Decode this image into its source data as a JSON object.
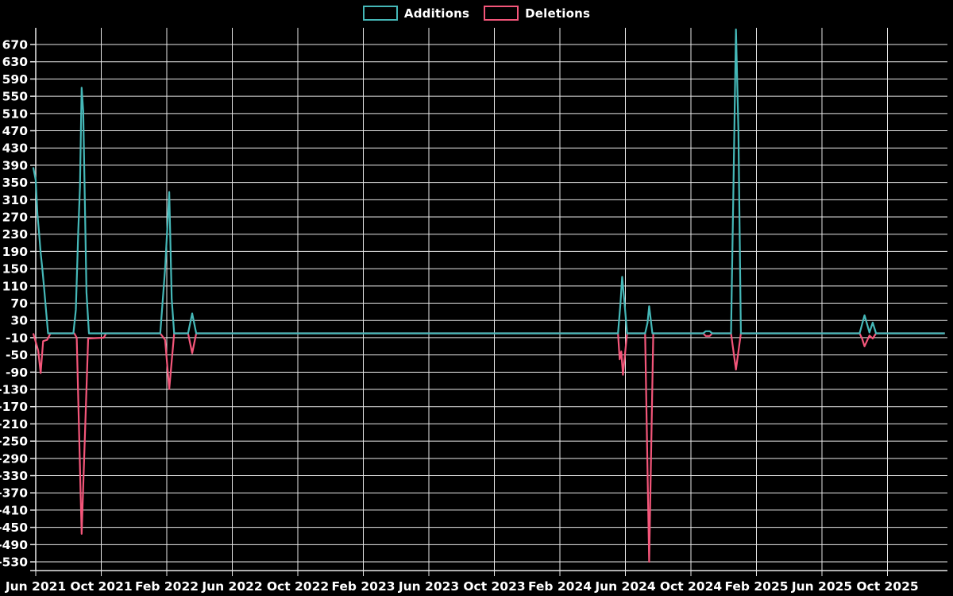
{
  "legend": {
    "items": [
      {
        "id": "additions",
        "label": "Additions",
        "color": "#45b8b8"
      },
      {
        "id": "deletions",
        "label": "Deletions",
        "color": "#f4567a"
      }
    ]
  },
  "chart_data": {
    "type": "line",
    "title": "",
    "xlabel": "",
    "ylabel": "",
    "background_color": "#000000",
    "grid_color": "#e8e8e8",
    "text_color": "#ffffff",
    "grid": true,
    "legend_position": "top-center",
    "x_unit": "months since Jun 2021",
    "x_tick_labels": [
      "Jun 2021",
      "Oct 2021",
      "Feb 2022",
      "Jun 2022",
      "Oct 2022",
      "Feb 2023",
      "Jun 2023",
      "Oct 2023",
      "Feb 2024",
      "Jun 2024",
      "Oct 2024",
      "Feb 2025",
      "Jun 2025",
      "Oct 2025"
    ],
    "x_tick_months": [
      0,
      4,
      8,
      12,
      16,
      20,
      24,
      28,
      32,
      36,
      40,
      44,
      48,
      52
    ],
    "y_tick_min": -530,
    "y_tick_max": 670,
    "y_tick_step": 40,
    "ylim": [
      -548,
      709
    ],
    "xlim_months": [
      -0.2,
      55.5
    ],
    "series": [
      {
        "name": "Additions",
        "color": "#45b8b8",
        "points": [
          [
            -0.15,
            385
          ],
          [
            0.0,
            355
          ],
          [
            0.1,
            277
          ],
          [
            0.2,
            235
          ],
          [
            0.3,
            187
          ],
          [
            0.4,
            150
          ],
          [
            0.5,
            110
          ],
          [
            0.6,
            66
          ],
          [
            0.75,
            0
          ],
          [
            2.3,
            0
          ],
          [
            2.45,
            55
          ],
          [
            2.6,
            240
          ],
          [
            2.7,
            340
          ],
          [
            2.8,
            570
          ],
          [
            2.9,
            515
          ],
          [
            3.0,
            300
          ],
          [
            3.1,
            95
          ],
          [
            3.25,
            0
          ],
          [
            7.6,
            0
          ],
          [
            7.9,
            150
          ],
          [
            8.15,
            328
          ],
          [
            8.3,
            80
          ],
          [
            8.45,
            0
          ],
          [
            9.3,
            0
          ],
          [
            9.55,
            46
          ],
          [
            9.8,
            0
          ],
          [
            35.55,
            0
          ],
          [
            35.7,
            70
          ],
          [
            35.8,
            131
          ],
          [
            35.95,
            68
          ],
          [
            36.1,
            0
          ],
          [
            37.2,
            0
          ],
          [
            37.35,
            24
          ],
          [
            37.45,
            63
          ],
          [
            37.65,
            0
          ],
          [
            40.75,
            0
          ],
          [
            40.9,
            5
          ],
          [
            41.15,
            5
          ],
          [
            41.3,
            0
          ],
          [
            42.45,
            0
          ],
          [
            42.6,
            345
          ],
          [
            42.75,
            705
          ],
          [
            42.9,
            470
          ],
          [
            43.05,
            0
          ],
          [
            50.3,
            0
          ],
          [
            50.6,
            42
          ],
          [
            50.9,
            2
          ],
          [
            51.1,
            25
          ],
          [
            51.3,
            0
          ],
          [
            55.5,
            0
          ]
        ]
      },
      {
        "name": "Deletions",
        "color": "#f4567a",
        "points": [
          [
            -0.15,
            0
          ],
          [
            0.15,
            -40
          ],
          [
            0.3,
            -92
          ],
          [
            0.45,
            -18
          ],
          [
            0.7,
            -15
          ],
          [
            0.9,
            0
          ],
          [
            2.35,
            0
          ],
          [
            2.5,
            -10
          ],
          [
            2.8,
            -465
          ],
          [
            3.2,
            -12
          ],
          [
            4.15,
            -10
          ],
          [
            4.3,
            0
          ],
          [
            7.6,
            0
          ],
          [
            7.9,
            -15
          ],
          [
            8.15,
            -129
          ],
          [
            8.45,
            0
          ],
          [
            9.3,
            0
          ],
          [
            9.55,
            -46
          ],
          [
            9.8,
            0
          ],
          [
            35.55,
            0
          ],
          [
            35.65,
            -60
          ],
          [
            35.75,
            -42
          ],
          [
            35.85,
            -96
          ],
          [
            36.1,
            0
          ],
          [
            37.2,
            0
          ],
          [
            37.45,
            -530
          ],
          [
            37.7,
            0
          ],
          [
            40.75,
            0
          ],
          [
            40.9,
            -6
          ],
          [
            41.15,
            -6
          ],
          [
            41.3,
            0
          ],
          [
            42.45,
            0
          ],
          [
            42.75,
            -84
          ],
          [
            43.05,
            0
          ],
          [
            50.3,
            0
          ],
          [
            50.45,
            -12
          ],
          [
            50.6,
            -30
          ],
          [
            50.9,
            -5
          ],
          [
            51.1,
            -12
          ],
          [
            51.3,
            0
          ],
          [
            55.5,
            0
          ]
        ]
      }
    ]
  }
}
